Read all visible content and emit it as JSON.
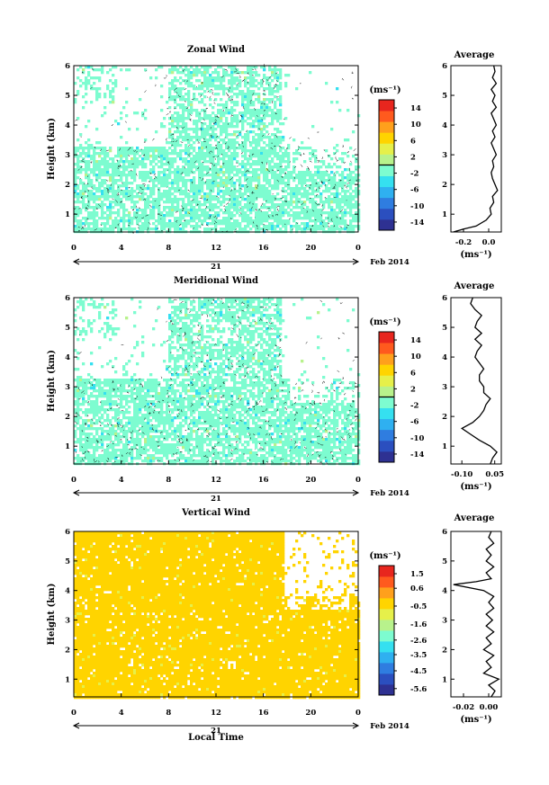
{
  "chart_data": [
    {
      "type": "heatmap",
      "title": "Zonal Wind",
      "xlabel": "",
      "ylabel": "Height (km)",
      "x_ticks": [
        "0",
        "4",
        "8",
        "12",
        "16",
        "20",
        "0"
      ],
      "xlim": [
        0,
        24
      ],
      "ylim": [
        0.4,
        6.0
      ],
      "y_ticks": [
        "1",
        "2",
        "3",
        "4",
        "5",
        "6"
      ],
      "date_day": "21",
      "date_label": "Feb 2014",
      "colorbar": {
        "unit": "(ms⁻¹)",
        "ticks": [
          "14",
          "10",
          "6",
          "2",
          "-2",
          "-6",
          "-10",
          "-14"
        ],
        "range": [
          -16,
          16
        ],
        "marker": 0
      },
      "dominant_value": 0,
      "coverage": "Data mostly between 0.4 and 3.5 km; sparse patches above 3.5 km; dense column 8-17 h up to 6 km",
      "profile": {
        "title": "Average",
        "xlabel": "(ms⁻¹)",
        "x_ticks": [
          "-0.2",
          "0.0"
        ],
        "xlim": [
          -0.3,
          0.1
        ],
        "height": [
          0.4,
          0.5,
          0.6,
          0.8,
          1.0,
          1.2,
          1.4,
          1.6,
          1.8,
          2.0,
          2.2,
          2.4,
          2.6,
          2.8,
          3.0,
          3.2,
          3.4,
          3.6,
          3.8,
          4.0,
          4.2,
          4.4,
          4.6,
          4.8,
          5.0,
          5.2,
          5.4,
          5.6,
          5.8,
          6.0
        ],
        "value": [
          -0.28,
          -0.2,
          -0.1,
          -0.02,
          0.02,
          0.01,
          0.04,
          0.03,
          0.07,
          0.05,
          0.03,
          0.02,
          0.04,
          0.03,
          0.06,
          0.04,
          0.02,
          0.05,
          0.03,
          0.06,
          0.04,
          0.02,
          0.06,
          0.03,
          0.05,
          0.02,
          0.06,
          0.03,
          0.05,
          0.04
        ]
      }
    },
    {
      "type": "heatmap",
      "title": "Meridional Wind",
      "xlabel": "",
      "ylabel": "Height (km)",
      "x_ticks": [
        "0",
        "4",
        "8",
        "12",
        "16",
        "20",
        "0"
      ],
      "xlim": [
        0,
        24
      ],
      "ylim": [
        0.4,
        6.0
      ],
      "y_ticks": [
        "1",
        "2",
        "3",
        "4",
        "5",
        "6"
      ],
      "date_day": "21",
      "date_label": "Feb 2014",
      "colorbar": {
        "unit": "(ms⁻¹)",
        "ticks": [
          "14",
          "10",
          "6",
          "2",
          "-2",
          "-6",
          "-10",
          "-14"
        ],
        "range": [
          -16,
          16
        ],
        "marker": 0
      },
      "dominant_value": 0,
      "coverage": "Data mostly between 0.4 and 3.5 km; sparse patches above 3.5 km; dense column 8-17 h up to 6 km",
      "profile": {
        "title": "Average",
        "xlabel": "(ms⁻¹)",
        "x_ticks": [
          "-0.10",
          "0.05"
        ],
        "xlim": [
          -0.15,
          0.08
        ],
        "height": [
          0.4,
          0.6,
          0.8,
          1.0,
          1.2,
          1.4,
          1.6,
          1.8,
          2.0,
          2.2,
          2.4,
          2.6,
          2.8,
          3.0,
          3.2,
          3.4,
          3.6,
          3.8,
          4.0,
          4.2,
          4.4,
          4.6,
          4.8,
          5.0,
          5.2,
          5.4,
          5.6,
          5.8,
          6.0
        ],
        "value": [
          0.03,
          0.04,
          0.06,
          0.03,
          -0.02,
          -0.06,
          -0.1,
          -0.05,
          -0.02,
          0.0,
          0.01,
          0.03,
          0.0,
          0.0,
          -0.02,
          -0.02,
          0.0,
          -0.02,
          -0.04,
          -0.03,
          -0.01,
          -0.04,
          -0.01,
          -0.04,
          -0.03,
          -0.01,
          -0.04,
          -0.06,
          -0.05
        ]
      }
    },
    {
      "type": "heatmap",
      "title": "Vertical Wind",
      "xlabel": "Local Time",
      "ylabel": "Height (km)",
      "x_ticks": [
        "0",
        "4",
        "8",
        "12",
        "16",
        "20",
        "0"
      ],
      "xlim": [
        0,
        24
      ],
      "ylim": [
        0.4,
        6.0
      ],
      "y_ticks": [
        "1",
        "2",
        "3",
        "4",
        "5",
        "6"
      ],
      "date_day": "21",
      "date_label": "Feb 2014",
      "colorbar": {
        "unit": "(ms⁻¹)",
        "ticks": [
          "1.5",
          "0.6",
          "-0.5",
          "-1.6",
          "-2.6",
          "-3.5",
          "-4.5",
          "-5.6"
        ],
        "range": [
          -6.0,
          2.0
        ],
        "marker": null
      },
      "dominant_value": 0.3,
      "coverage": "Nearly full coverage 0.4-6 km; gap after 17.5 h above 3.5 km",
      "profile": {
        "title": "Average",
        "xlabel": "(ms⁻¹)",
        "x_ticks": [
          "-0.02",
          "0.00"
        ],
        "xlim": [
          -0.03,
          0.01
        ],
        "height": [
          0.4,
          0.6,
          0.8,
          1.0,
          1.2,
          1.4,
          1.6,
          1.8,
          2.0,
          2.2,
          2.4,
          2.6,
          2.8,
          3.0,
          3.2,
          3.4,
          3.6,
          3.8,
          4.0,
          4.2,
          4.3,
          4.4,
          4.6,
          4.8,
          5.0,
          5.2,
          5.4,
          5.6,
          5.8,
          6.0
        ],
        "value": [
          0.002,
          0.005,
          0.0,
          0.008,
          -0.004,
          0.002,
          -0.002,
          0.004,
          -0.004,
          0.002,
          -0.002,
          0.004,
          -0.002,
          0.003,
          -0.002,
          0.004,
          0.0,
          0.004,
          -0.004,
          -0.028,
          -0.01,
          0.002,
          -0.002,
          0.004,
          -0.002,
          0.002,
          -0.002,
          0.004,
          0.0,
          0.002
        ]
      }
    }
  ],
  "palette": [
    "#2e3192",
    "#2b4fbf",
    "#2f7de0",
    "#2fb0f0",
    "#35e0f0",
    "#7dfcd0",
    "#b8f28c",
    "#e6f04a",
    "#ffd400",
    "#ffa01c",
    "#ff5a1e",
    "#e8261e"
  ]
}
